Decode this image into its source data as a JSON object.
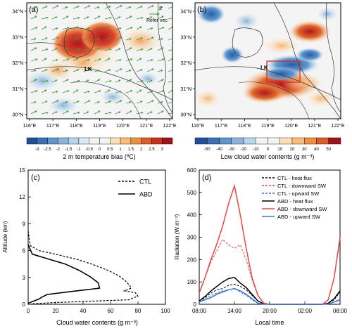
{
  "panels": {
    "a": {
      "label": "(a)",
      "refer_vector": {
        "value": "2",
        "label": "Refer vec"
      },
      "city_label": "LK",
      "lat_ticks": [
        "30°N",
        "31°N",
        "32°N",
        "33°N",
        "34°N"
      ],
      "lon_ticks": [
        "116°E",
        "117°E",
        "118°E",
        "119°E",
        "120°E",
        "121°E",
        "122°E"
      ],
      "colorbar_ticks": [
        "-3",
        "-2.5",
        "-2",
        "-1.5",
        "-1",
        "-0.5",
        "0",
        "0.5",
        "1",
        "1.5",
        "2",
        "2.5",
        "3"
      ],
      "colorbar_title": "2 m temperature bias (ºC)",
      "colorbar_colors": [
        "#1f4e9b",
        "#3770b5",
        "#5e95cb",
        "#8cb5dc",
        "#b8d4eb",
        "#dde9f5",
        "#f3f3f3",
        "#f3f3f3",
        "#fbe0b6",
        "#f7bd76",
        "#ef8f40",
        "#df5a26",
        "#c8301f",
        "#a3121a"
      ]
    },
    "b": {
      "label": "(b)",
      "city_label": "LK",
      "lat_ticks": [
        "30°N",
        "31°N",
        "32°N",
        "33°N",
        "34°N"
      ],
      "lon_ticks": [
        "116°E",
        "117°E",
        "118°E",
        "119°E",
        "120°E",
        "121°E",
        "122°E"
      ],
      "colorbar_ticks": [
        "-50",
        "-40",
        "-30",
        "-20",
        "-10",
        "0",
        "10",
        "20",
        "30",
        "40",
        "50"
      ],
      "colorbar_title": "Low cloud water contents (g m⁻³)",
      "colorbar_colors": [
        "#1f4e9b",
        "#3770b5",
        "#5e95cb",
        "#8cb5dc",
        "#b8d4eb",
        "#f3f3f3",
        "#f3f3f3",
        "#fbe0b6",
        "#f7bd76",
        "#ef8f40",
        "#df5a26",
        "#a3121a"
      ]
    },
    "c": {
      "label": "(c)",
      "xlabel": "Cloud water contents (g m⁻³)",
      "ylabel": "Altitude (km)",
      "x_ticks": [
        "0",
        "20",
        "40",
        "60",
        "80",
        "100"
      ],
      "y_ticks": [
        "0",
        "3",
        "6",
        "9",
        "12",
        "15"
      ],
      "legend": [
        {
          "name": "CTL",
          "style": "dashed"
        },
        {
          "name": "ABD",
          "style": "solid"
        }
      ]
    },
    "d": {
      "label": "(d)",
      "xlabel": "Local time",
      "ylabel": "Radiation (W m⁻²)",
      "x_ticks": [
        "08:00",
        "14:00",
        "20:00",
        "02:00",
        "08:00"
      ],
      "y_ticks": [
        "0",
        "100",
        "200",
        "300",
        "400",
        "500",
        "600"
      ],
      "legend": [
        {
          "name": "CTL - heat flux",
          "color": "#000000",
          "style": "dashed"
        },
        {
          "name": "CTL - downward SW",
          "color": "#e8474a",
          "style": "dashed"
        },
        {
          "name": "CTL - upward SW",
          "color": "#3b74d6",
          "style": "dashed"
        },
        {
          "name": "ABD - heat flux",
          "color": "#000000",
          "style": "solid"
        },
        {
          "name": "ABD - downward SW",
          "color": "#e8474a",
          "style": "solid"
        },
        {
          "name": "ABD - upward SW",
          "color": "#3b74d6",
          "style": "solid"
        }
      ]
    }
  },
  "chart_data": [
    {
      "type": "line",
      "panel": "c",
      "xlim": [
        0,
        100
      ],
      "ylim": [
        0,
        15
      ],
      "grid": false,
      "legend_position": "top-right",
      "series": [
        {
          "name": "CTL",
          "points": [
            [
              0,
              8.2
            ],
            [
              0.5,
              7.6
            ],
            [
              1,
              7.0
            ],
            [
              2,
              6.5
            ],
            [
              8,
              6.0
            ],
            [
              20,
              5.6
            ],
            [
              36,
              5.0
            ],
            [
              48,
              4.4
            ],
            [
              58,
              3.8
            ],
            [
              66,
              3.2
            ],
            [
              71,
              2.6
            ],
            [
              74,
              2.1
            ],
            [
              75,
              1.8
            ],
            [
              70,
              1.5
            ],
            [
              78,
              1.3
            ],
            [
              80,
              0.9
            ],
            [
              73,
              0.5
            ],
            [
              20,
              0.2
            ],
            [
              2,
              0.05
            ]
          ]
        },
        {
          "name": "ABD",
          "points": [
            [
              0,
              6.7
            ],
            [
              1,
              6.3
            ],
            [
              3,
              5.6
            ],
            [
              14,
              5.1
            ],
            [
              27,
              4.5
            ],
            [
              37,
              3.8
            ],
            [
              45,
              3.1
            ],
            [
              51,
              2.4
            ],
            [
              52,
              1.8
            ],
            [
              35,
              1.5
            ],
            [
              14,
              1.1
            ],
            [
              10,
              0.8
            ],
            [
              8,
              0.6
            ],
            [
              3,
              0.3
            ],
            [
              0,
              0.1
            ]
          ]
        }
      ]
    },
    {
      "type": "line",
      "panel": "d",
      "x": [
        "08:00",
        "09:00",
        "10:00",
        "11:00",
        "12:00",
        "13:00",
        "14:00",
        "15:00",
        "16:00",
        "17:00",
        "18:00",
        "19:00",
        "20:00",
        "21:00",
        "22:00",
        "23:00",
        "00:00",
        "01:00",
        "02:00",
        "03:00",
        "04:00",
        "05:00",
        "06:00",
        "07:00",
        "08:00"
      ],
      "ylim": [
        0,
        600
      ],
      "grid": false,
      "legend_position": "top-right",
      "series": [
        {
          "name": "CTL - heat flux",
          "values": [
            15,
            30,
            50,
            65,
            70,
            85,
            90,
            80,
            65,
            40,
            15,
            2,
            0,
            0,
            0,
            0,
            0,
            0,
            0,
            0,
            0,
            0,
            5,
            20,
            55
          ]
        },
        {
          "name": "CTL - downward SW",
          "values": [
            50,
            120,
            190,
            240,
            290,
            265,
            250,
            265,
            200,
            110,
            40,
            5,
            0,
            0,
            0,
            0,
            0,
            0,
            0,
            0,
            0,
            0,
            20,
            120,
            290
          ]
        },
        {
          "name": "CTL - upward SW",
          "values": [
            10,
            25,
            40,
            50,
            60,
            65,
            70,
            55,
            40,
            20,
            5,
            0,
            0,
            0,
            0,
            0,
            0,
            0,
            0,
            0,
            0,
            0,
            2,
            10,
            25
          ]
        },
        {
          "name": "ABD - heat flux",
          "values": [
            15,
            35,
            60,
            80,
            100,
            115,
            120,
            95,
            75,
            45,
            15,
            2,
            0,
            0,
            0,
            0,
            0,
            0,
            0,
            0,
            0,
            0,
            5,
            25,
            60
          ]
        },
        {
          "name": "ABD - downward SW",
          "values": [
            50,
            120,
            200,
            270,
            350,
            450,
            530,
            400,
            250,
            120,
            40,
            5,
            0,
            0,
            0,
            0,
            0,
            0,
            0,
            0,
            0,
            0,
            20,
            120,
            300
          ]
        },
        {
          "name": "ABD - upward SW",
          "values": [
            10,
            20,
            30,
            45,
            55,
            65,
            70,
            60,
            45,
            25,
            5,
            0,
            0,
            0,
            0,
            0,
            0,
            0,
            0,
            0,
            0,
            0,
            2,
            10,
            20
          ]
        }
      ]
    }
  ]
}
